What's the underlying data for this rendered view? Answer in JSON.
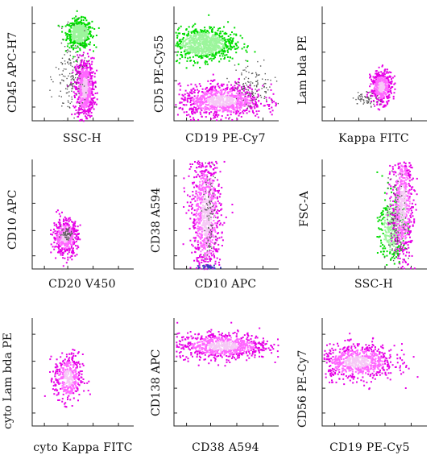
{
  "colors": {
    "background": "#ffffff",
    "axis": "#222222",
    "magenta": "#e600e6",
    "magenta_light": "#ff66ff",
    "magenta_core": "#f6c8f6",
    "green": "#00dd00",
    "green_light": "#9cf59c",
    "gray": "#555555",
    "blue": "#4040c0"
  },
  "chart_data": [
    {
      "type": "scatter",
      "xlabel": "SSC-H",
      "ylabel": "CD45 APC-H7",
      "populations": [
        {
          "color": "green",
          "cx": 0.46,
          "cy": 0.77,
          "sx": 0.06,
          "sy": 0.06,
          "n": 550
        },
        {
          "color": "magenta",
          "cx": 0.51,
          "cy": 0.29,
          "sx": 0.045,
          "sy": 0.13,
          "n": 700
        },
        {
          "color": "gray",
          "cx": 0.38,
          "cy": 0.38,
          "sx": 0.08,
          "sy": 0.18,
          "n": 160
        }
      ]
    },
    {
      "type": "scatter",
      "xlabel": "CD19 PE-Cy7",
      "ylabel": "CD5 PE-Cy55",
      "populations": [
        {
          "color": "green",
          "cx": 0.27,
          "cy": 0.68,
          "sx": 0.15,
          "sy": 0.07,
          "n": 900
        },
        {
          "color": "magenta",
          "cx": 0.45,
          "cy": 0.18,
          "sx": 0.2,
          "sy": 0.07,
          "n": 900
        },
        {
          "color": "gray",
          "cx": 0.75,
          "cy": 0.3,
          "sx": 0.1,
          "sy": 0.1,
          "n": 120
        }
      ]
    },
    {
      "type": "scatter",
      "xlabel": "Kappa FITC",
      "ylabel": "Lam bda PE",
      "populations": [
        {
          "color": "magenta",
          "cx": 0.56,
          "cy": 0.3,
          "sx": 0.05,
          "sy": 0.07,
          "n": 450
        },
        {
          "color": "gray",
          "cx": 0.42,
          "cy": 0.2,
          "sx": 0.06,
          "sy": 0.03,
          "n": 60
        }
      ]
    },
    {
      "type": "scatter",
      "xlabel": "CD20 V450",
      "ylabel": "CD10 APC",
      "populations": [
        {
          "color": "magenta",
          "cx": 0.32,
          "cy": 0.3,
          "sx": 0.06,
          "sy": 0.08,
          "n": 500
        },
        {
          "color": "gray",
          "cx": 0.34,
          "cy": 0.33,
          "sx": 0.03,
          "sy": 0.03,
          "n": 60
        }
      ]
    },
    {
      "type": "scatter",
      "xlabel": "CD10 APC",
      "ylabel": "CD38 A594",
      "populations": [
        {
          "color": "magenta",
          "cx": 0.3,
          "cy": 0.5,
          "sx": 0.07,
          "sy": 0.28,
          "n": 900
        },
        {
          "color": "gray",
          "cx": 0.33,
          "cy": 0.5,
          "sx": 0.03,
          "sy": 0.2,
          "n": 90
        },
        {
          "color": "blue",
          "cx": 0.33,
          "cy": 0.03,
          "sx": 0.04,
          "sy": 0.01,
          "n": 30
        }
      ]
    },
    {
      "type": "scatter",
      "xlabel": "SSC-H",
      "ylabel": "FSC-A",
      "populations": [
        {
          "color": "green",
          "cx": 0.66,
          "cy": 0.38,
          "sx": 0.06,
          "sy": 0.16,
          "n": 350
        },
        {
          "color": "magenta",
          "cx": 0.76,
          "cy": 0.6,
          "sx": 0.05,
          "sy": 0.26,
          "n": 650
        },
        {
          "color": "gray",
          "cx": 0.7,
          "cy": 0.45,
          "sx": 0.05,
          "sy": 0.2,
          "n": 120
        }
      ]
    },
    {
      "type": "scatter",
      "xlabel": "cyto Kappa FITC",
      "ylabel": "cyto Lam bda PE",
      "populations": [
        {
          "color": "magenta",
          "cx": 0.35,
          "cy": 0.45,
          "sx": 0.07,
          "sy": 0.11,
          "n": 400
        }
      ]
    },
    {
      "type": "scatter",
      "xlabel": "CD38 A594",
      "ylabel": "CD138 APC",
      "populations": [
        {
          "color": "magenta",
          "cx": 0.46,
          "cy": 0.75,
          "sx": 0.22,
          "sy": 0.06,
          "n": 800
        }
      ]
    },
    {
      "type": "scatter",
      "xlabel": "CD19 PE-Cy5",
      "ylabel": "CD56 PE-Cy7",
      "populations": [
        {
          "color": "magenta",
          "cx": 0.33,
          "cy": 0.6,
          "sx": 0.18,
          "sy": 0.08,
          "n": 750
        }
      ]
    }
  ]
}
